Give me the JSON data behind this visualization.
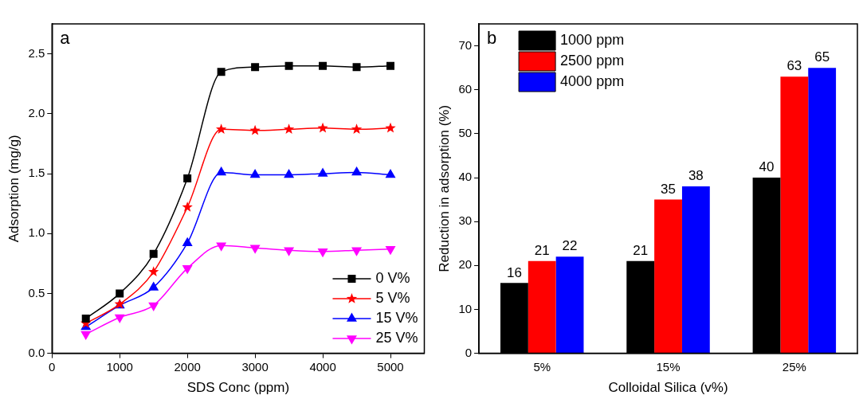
{
  "chart_data": [
    {
      "type": "line",
      "xlabel": "SDS Conc (ppm)",
      "ylabel": "Adsorption (mg/g)",
      "annotations": [
        "a"
      ],
      "x": [
        500,
        1000,
        1500,
        2000,
        2500,
        3000,
        3500,
        4000,
        4500,
        5000
      ],
      "series": [
        {
          "name": "0 V%",
          "color": "#000000",
          "marker": "square",
          "values": [
            0.29,
            0.5,
            0.83,
            1.46,
            2.35,
            2.39,
            2.4,
            2.4,
            2.39,
            2.4
          ]
        },
        {
          "name": "5 V%",
          "color": "#ff0000",
          "marker": "star",
          "values": [
            0.25,
            0.41,
            0.68,
            1.22,
            1.87,
            1.86,
            1.87,
            1.88,
            1.87,
            1.88
          ]
        },
        {
          "name": "15 V%",
          "color": "#0000ff",
          "marker": "triangle",
          "values": [
            0.22,
            0.4,
            0.55,
            0.92,
            1.51,
            1.49,
            1.49,
            1.5,
            1.51,
            1.49
          ]
        },
        {
          "name": "25 V%",
          "color": "#ff00ff",
          "marker": "triangle-down",
          "values": [
            0.16,
            0.3,
            0.4,
            0.71,
            0.9,
            0.88,
            0.86,
            0.85,
            0.86,
            0.87
          ]
        }
      ],
      "xlim": [
        0,
        5500
      ],
      "xticks": [
        0,
        1000,
        2000,
        3000,
        4000,
        5000
      ],
      "ylim": [
        0,
        2.75
      ],
      "yticks": [
        {
          "value": 0,
          "label": "0.0"
        },
        {
          "value": 0.5,
          "label": "0.5"
        },
        {
          "value": 1,
          "label": "1.0"
        },
        {
          "value": 1.5,
          "label": "1.5"
        },
        {
          "value": 2,
          "label": "2.0"
        },
        {
          "value": 2.5,
          "label": "2.5"
        }
      ],
      "grid": false,
      "legend": "bottom right",
      "line_style": "solid"
    },
    {
      "type": "bar",
      "xlabel": "Colloidal Silica (v%)",
      "ylabel": "Reduction in adsorption (%)",
      "annotations": [
        "b"
      ],
      "categories": [
        "5%",
        "15%",
        "25%"
      ],
      "series": [
        {
          "name": "1000 ppm",
          "color": "#000000",
          "values": [
            16,
            21,
            40
          ]
        },
        {
          "name": "2500 ppm",
          "color": "#ff0000",
          "values": [
            21,
            35,
            63
          ]
        },
        {
          "name": "4000 ppm",
          "color": "#0000ff",
          "values": [
            22,
            38,
            65
          ]
        }
      ],
      "ylim": [
        0,
        75
      ],
      "yticks": [
        0,
        10,
        20,
        30,
        40,
        50,
        60,
        70
      ],
      "grid": false,
      "legend": "top left",
      "data_labels": true
    }
  ]
}
